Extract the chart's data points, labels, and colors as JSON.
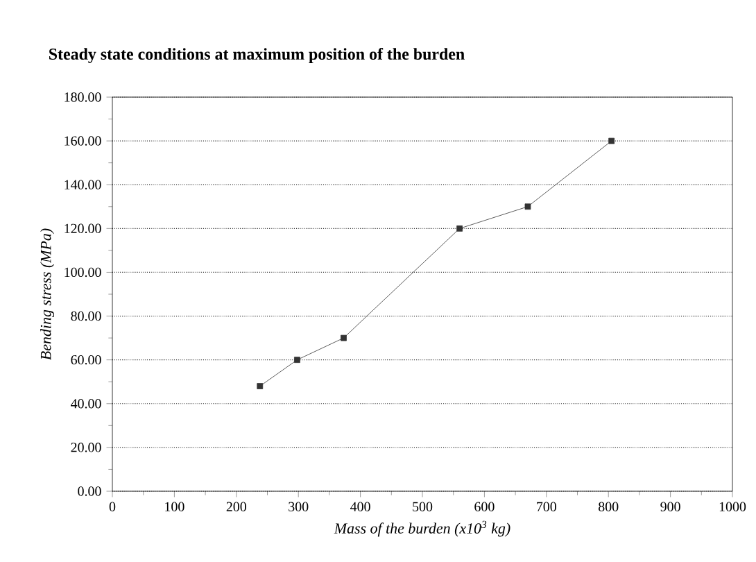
{
  "chart_data": {
    "type": "line",
    "title": "Steady state conditions at maximum position of the burden",
    "xlabel": "Mass of the burden  (x10$^{3}$ kg)",
    "ylabel": "Bending stress (MPa)",
    "x": [
      238,
      298,
      373,
      560,
      670,
      805
    ],
    "series": [
      {
        "color": "#333333",
        "values": [
          48,
          60,
          70,
          120,
          130,
          160
        ]
      }
    ],
    "xlim": [
      0,
      1000
    ],
    "xticks": [
      0,
      100,
      200,
      300,
      400,
      500,
      600,
      700,
      800,
      900,
      1000
    ],
    "ylim": [
      0,
      180
    ],
    "yticks": [
      {
        "value": 0,
        "label": "0.00"
      },
      {
        "value": 20,
        "label": "20.00"
      },
      {
        "value": 40,
        "label": "40.00"
      },
      {
        "value": 60,
        "label": "60.00"
      },
      {
        "value": 80,
        "label": "80.00"
      },
      {
        "value": 100,
        "label": "100.00"
      },
      {
        "value": 120,
        "label": "120.00"
      },
      {
        "value": 140,
        "label": "140.00"
      },
      {
        "value": 160,
        "label": "160.00"
      },
      {
        "value": 180,
        "label": "180.00"
      }
    ],
    "grid": "y",
    "marker": "square",
    "line_style": "solid"
  }
}
